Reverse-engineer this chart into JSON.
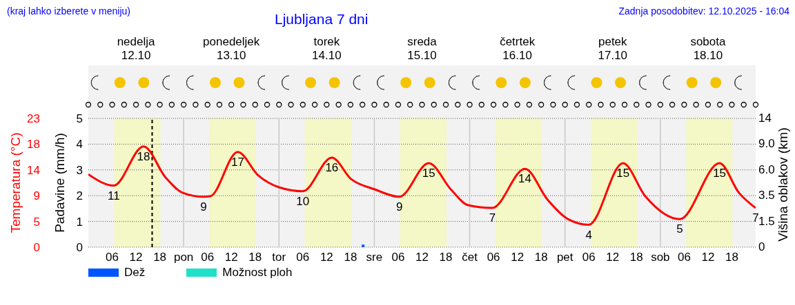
{
  "chart_data": {
    "type": "line",
    "title": "Ljubljana 7 dni",
    "annotations": [
      "(kraj lahko izberete v meniju)",
      "Zadnja posodobitev: 12.10.2025 - 16:04",
      "0",
      "1.5",
      "3.5",
      "6.0",
      "9.0",
      "14"
    ],
    "ylabel": "Padavine (mm/h)",
    "y2label": "Temperatura (°C)",
    "y3label": "Višina oblakov (km)",
    "xlim": [
      "2025-10-12T00:00",
      "2025-10-19T00:00"
    ],
    "xticks": [
      {
        "value": "2025-10-12T06:00",
        "label": "06"
      },
      {
        "value": "2025-10-12T12:00",
        "label": "12"
      },
      {
        "value": "2025-10-12T18:00",
        "label": "18"
      },
      {
        "value": "2025-10-13T00:00",
        "label": "pon"
      },
      {
        "value": "2025-10-13T06:00",
        "label": "06"
      },
      {
        "value": "2025-10-13T12:00",
        "label": "12"
      },
      {
        "value": "2025-10-13T18:00",
        "label": "18"
      },
      {
        "value": "2025-10-14T00:00",
        "label": "tor"
      },
      {
        "value": "2025-10-14T06:00",
        "label": "06"
      },
      {
        "value": "2025-10-14T12:00",
        "label": "12"
      },
      {
        "value": "2025-10-14T18:00",
        "label": "18"
      },
      {
        "value": "2025-10-15T00:00",
        "label": "sre"
      },
      {
        "value": "2025-10-15T06:00",
        "label": "06"
      },
      {
        "value": "2025-10-15T12:00",
        "label": "12"
      },
      {
        "value": "2025-10-15T18:00",
        "label": "18"
      },
      {
        "value": "2025-10-16T00:00",
        "label": "čet"
      },
      {
        "value": "2025-10-16T06:00",
        "label": "06"
      },
      {
        "value": "2025-10-16T12:00",
        "label": "12"
      },
      {
        "value": "2025-10-16T18:00",
        "label": "18"
      },
      {
        "value": "2025-10-17T00:00",
        "label": "pet"
      },
      {
        "value": "2025-10-17T06:00",
        "label": "06"
      },
      {
        "value": "2025-10-17T12:00",
        "label": "12"
      },
      {
        "value": "2025-10-17T18:00",
        "label": "18"
      },
      {
        "value": "2025-10-18T00:00",
        "label": "sob"
      },
      {
        "value": "2025-10-18T06:00",
        "label": "06"
      },
      {
        "value": "2025-10-18T12:00",
        "label": "12"
      },
      {
        "value": "2025-10-18T18:00",
        "label": "18"
      }
    ],
    "x2lim": [
      "2025-10-12T00:00",
      "2025-10-19T00:00"
    ],
    "x2ticks": [
      {
        "value": "2025-10-12T12:00",
        "label": "nedelja 12.10"
      },
      {
        "value": "2025-10-13T12:00",
        "label": "ponedeljek 13.10"
      },
      {
        "value": "2025-10-14T12:00",
        "label": "torek 14.10"
      },
      {
        "value": "2025-10-15T12:00",
        "label": "sreda 15.10"
      },
      {
        "value": "2025-10-16T12:00",
        "label": "četrtek 16.10"
      },
      {
        "value": "2025-10-17T12:00",
        "label": "petek 17.10"
      },
      {
        "value": "2025-10-18T12:00",
        "label": "sobota 18.10"
      }
    ],
    "ylim": [
      0,
      5
    ],
    "yticks": [
      0,
      1,
      2,
      3,
      4,
      5
    ],
    "y2lim": [
      0,
      23
    ],
    "y2ticks": [
      0,
      {
        "value": 4.6,
        "label": "5"
      },
      {
        "value": 9.2,
        "label": "9"
      },
      {
        "value": 13.8,
        "label": "14"
      },
      {
        "value": 18.4,
        "label": "18"
      },
      23
    ],
    "grid": "y",
    "legend": "bottom left",
    "marker": "none",
    "line_style": "solid",
    "bands": [
      {
        "axis": "x",
        "from": "2025-10-12T06:30",
        "to": "2025-10-12T18:10",
        "color": "#f4f7c6"
      },
      {
        "axis": "x",
        "from": "2025-10-13T06:30",
        "to": "2025-10-13T18:10",
        "color": "#f4f7c6"
      },
      {
        "axis": "x",
        "from": "2025-10-14T06:30",
        "to": "2025-10-14T18:10",
        "color": "#f4f7c6"
      },
      {
        "axis": "x",
        "from": "2025-10-15T06:30",
        "to": "2025-10-15T18:10",
        "color": "#f4f7c6"
      },
      {
        "axis": "x",
        "from": "2025-10-16T06:30",
        "to": "2025-10-16T18:10",
        "color": "#f4f7c6"
      },
      {
        "axis": "x",
        "from": "2025-10-17T06:30",
        "to": "2025-10-17T18:10",
        "color": "#f4f7c6"
      },
      {
        "axis": "x",
        "from": "2025-10-18T06:30",
        "to": "2025-10-18T18:10",
        "color": "#f4f7c6"
      }
    ],
    "ref_lines": [
      {
        "axis": "x",
        "value": "2025-10-12T16:04",
        "color": "#000000",
        "line_style": "dashed"
      },
      {
        "axis": "x",
        "value": "2025-10-13T00:00",
        "color": "#c8c8c8",
        "line_style": "solid"
      },
      {
        "axis": "x",
        "value": "2025-10-14T00:00",
        "color": "#c8c8c8",
        "line_style": "solid"
      },
      {
        "axis": "x",
        "value": "2025-10-15T00:00",
        "color": "#c8c8c8",
        "line_style": "solid"
      },
      {
        "axis": "x",
        "value": "2025-10-16T00:00",
        "color": "#c8c8c8",
        "line_style": "solid"
      },
      {
        "axis": "x",
        "value": "2025-10-17T00:00",
        "color": "#c8c8c8",
        "line_style": "solid"
      },
      {
        "axis": "x",
        "value": "2025-10-18T00:00",
        "color": "#c8c8c8",
        "line_style": "solid"
      }
    ],
    "series": [
      {
        "axis": "y2",
        "color": "#ff0000",
        "x": [
          "2025-10-12T00:00",
          "2025-10-12T06:24",
          "2025-10-12T13:54",
          "2025-10-12T19:30",
          "2025-10-12T23:48",
          "2025-10-13T05:00",
          "2025-10-13T06:42",
          "2025-10-13T13:36",
          "2025-10-13T18:48",
          "2025-10-14T00:00",
          "2025-10-14T06:00",
          "2025-10-14T13:18",
          "2025-10-14T18:06",
          "2025-10-15T00:12",
          "2025-10-15T06:18",
          "2025-10-15T13:42",
          "2025-10-15T19:18",
          "2025-10-15T23:36",
          "2025-10-16T05:42",
          "2025-10-16T13:54",
          "2025-10-16T19:36",
          "2025-10-17T00:48",
          "2025-10-17T06:00",
          "2025-10-17T14:36",
          "2025-10-17T20:12",
          "2025-10-18T04:54",
          "2025-10-18T14:54",
          "2025-10-18T19:48",
          "2025-10-19T00:00"
        ],
        "values": [
          13,
          11,
          18,
          12.4,
          9.7,
          9,
          9.1,
          17,
          12.8,
          10.7,
          10,
          16,
          12.2,
          10.3,
          9,
          15,
          10.3,
          7.5,
          7,
          14,
          8.5,
          5,
          4,
          15,
          9.1,
          5,
          15,
          9.7,
          7
        ],
        "value_labels": [
          null,
          "11",
          "18",
          null,
          null,
          "9",
          null,
          "17",
          null,
          null,
          "10",
          "16",
          null,
          null,
          "9",
          "15",
          null,
          null,
          "7",
          "14",
          null,
          null,
          "4",
          "15",
          null,
          "5",
          "15",
          null,
          "7"
        ]
      },
      {
        "type": "bar",
        "name": "Dež",
        "color": "#0055ff",
        "x": [
          "2025-10-14T21:30"
        ],
        "values": [
          0.1
        ]
      },
      {
        "type": "bar",
        "name": "Možnost ploh",
        "color": "#20e0c8"
      }
    ]
  }
}
